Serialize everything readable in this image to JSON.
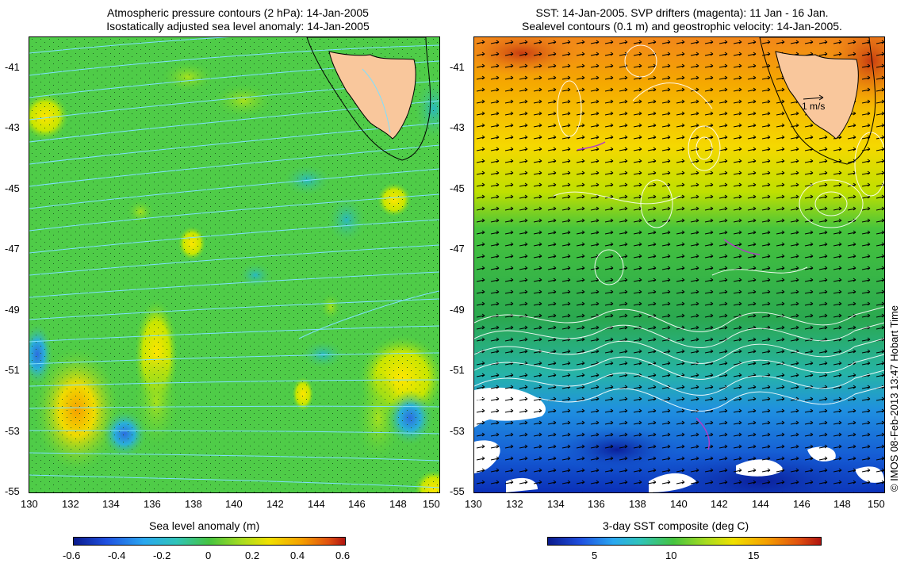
{
  "left_panel": {
    "title_line1": "Atmospheric pressure contours (2 hPa): 14-Jan-2005",
    "title_line2": "Isostatically adjusted sea level anomaly: 14-Jan-2005",
    "x_ticks": [
      "130",
      "132",
      "134",
      "136",
      "138",
      "140",
      "142",
      "144",
      "146",
      "148",
      "150"
    ],
    "y_ticks": [
      "-41",
      "-43",
      "-45",
      "-47",
      "-49",
      "-51",
      "-53",
      "-55"
    ],
    "colorbar_title": "Sea level anomaly (m)",
    "colorbar_ticks": [
      "-0.6",
      "-0.4",
      "-0.2",
      "0",
      "0.2",
      "0.4",
      "0.6"
    ],
    "colorbar_range": [
      -0.6,
      0.6
    ]
  },
  "right_panel": {
    "title_line1": "SST: 14-Jan-2005. SVP drifters (magenta): 11 Jan - 16 Jan.",
    "title_line2": "Sealevel contours (0.1 m) and geostrophic velocity: 14-Jan-2005.",
    "x_ticks": [
      "130",
      "132",
      "134",
      "136",
      "138",
      "140",
      "142",
      "144",
      "146",
      "148",
      "150"
    ],
    "y_ticks": [
      "-41",
      "-43",
      "-45",
      "-47",
      "-49",
      "-51",
      "-53",
      "-55"
    ],
    "velocity_scale_label": "1 m/s",
    "colorbar_title": "3-day SST composite (deg C)",
    "colorbar_ticks": [
      "5",
      "10",
      "15"
    ]
  },
  "credit": "© IMOS 08-Feb-2013 13:47 Hobart Time",
  "map_extent": {
    "lon": [
      130,
      150
    ],
    "lat": [
      -55,
      -40
    ]
  },
  "colors": {
    "land": "#f9c79c",
    "pressure_contours": "#7fe0ff",
    "drifters": "#b03cc8",
    "sea_level_contours": "#ffffff",
    "vectors": "#000000"
  }
}
